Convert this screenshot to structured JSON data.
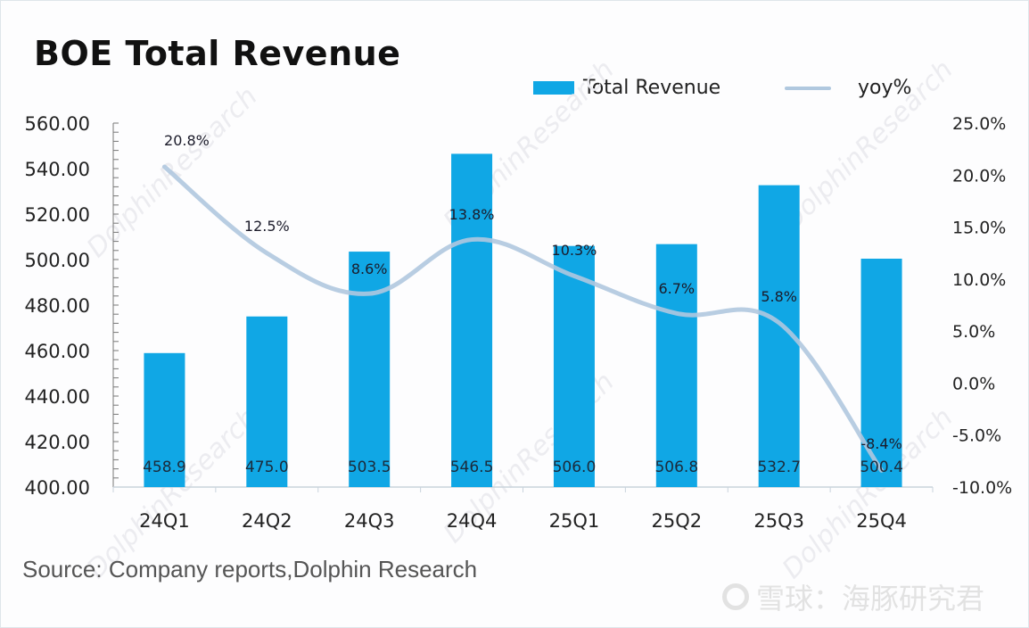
{
  "chart_data": {
    "type": "bar+line",
    "title": "BOE Total Revenue",
    "categories": [
      "24Q1",
      "24Q2",
      "24Q3",
      "24Q4",
      "25Q1",
      "25Q2",
      "25Q3",
      "25Q4"
    ],
    "series": [
      {
        "name": "Total Revenue",
        "type": "bar",
        "axis": "left",
        "color": "#10a7e5",
        "values": [
          458.9,
          475.0,
          503.5,
          546.5,
          506.0,
          506.8,
          532.7,
          500.4
        ],
        "labels": [
          "458.9",
          "475.0",
          "503.5",
          "546.5",
          "506.0",
          "506.8",
          "532.7",
          "500.4"
        ]
      },
      {
        "name": "yoy%",
        "type": "line",
        "axis": "right",
        "color": "#b0c8df",
        "smooth": true,
        "values": [
          20.8,
          12.5,
          8.6,
          13.8,
          10.3,
          6.7,
          5.8,
          -8.4
        ],
        "labels": [
          "20.8%",
          "12.5%",
          "8.6%",
          "13.8%",
          "10.3%",
          "6.7%",
          "5.8%",
          "-8.4%"
        ]
      }
    ],
    "left_axis": {
      "ylim": [
        400,
        560
      ],
      "ticks": [
        "400.00",
        "420.00",
        "440.00",
        "460.00",
        "480.00",
        "500.00",
        "520.00",
        "540.00",
        "560.00"
      ],
      "tick_values": [
        400,
        420,
        440,
        460,
        480,
        500,
        520,
        540,
        560
      ]
    },
    "right_axis": {
      "ylim": [
        -10,
        25
      ],
      "ticks": [
        "-10.0%",
        "-5.0%",
        "0.0%",
        "5.0%",
        "10.0%",
        "15.0%",
        "20.0%",
        "25.0%"
      ],
      "tick_values": [
        -10,
        -5,
        0,
        5,
        10,
        15,
        20,
        25
      ]
    },
    "xlabel": "",
    "ylabel": "",
    "grid": false,
    "legend": "top-right"
  },
  "legend": {
    "bar_label": "Total Revenue",
    "line_label": "yoy%"
  },
  "footer": {
    "source": "Source: Company reports,Dolphin Research",
    "watermark": "雪球：海豚研究君"
  },
  "watermark_text": "DolphinResearch"
}
